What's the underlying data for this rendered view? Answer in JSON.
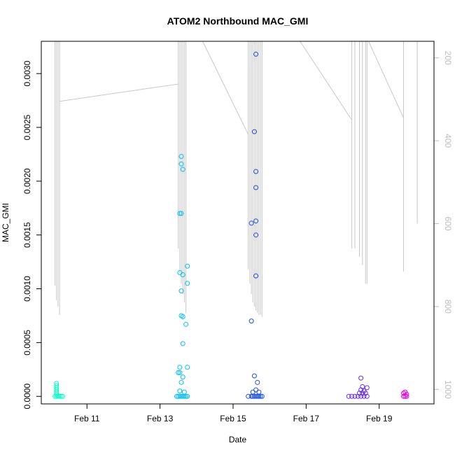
{
  "chart_data": {
    "type": "scatter",
    "title": "ATOM2 Northbound MAC_GMI",
    "xlabel": "Date",
    "ylabel": "MAC_GMI",
    "xlim": [
      "2024-02-09T18:00",
      "2024-02-20T12:00"
    ],
    "ylim": [
      -7e-05,
      0.0033
    ],
    "x_ticks": [
      {
        "value": "2024-02-11T00:00",
        "label": "Feb 11"
      },
      {
        "value": "2024-02-13T00:00",
        "label": "Feb 13"
      },
      {
        "value": "2024-02-15T00:00",
        "label": "Feb 15"
      },
      {
        "value": "2024-02-17T00:00",
        "label": "Feb 17"
      },
      {
        "value": "2024-02-19T00:00",
        "label": "Feb 19"
      }
    ],
    "y_ticks": [
      0.0,
      0.0005,
      0.001,
      0.0015,
      0.002,
      0.0025,
      0.003
    ],
    "y_tick_labels": [
      "0.0000",
      "0.0005",
      "0.0010",
      "0.0015",
      "0.0020",
      "0.0025",
      "0.0030"
    ],
    "secondary_axis": {
      "position": "right",
      "reversed": true,
      "ylim": [
        1035,
        160
      ],
      "ticks": [
        200,
        400,
        600,
        800,
        1000
      ],
      "color": "#bdbdbd"
    },
    "grid": false,
    "series": [
      {
        "color": "#00ffc8",
        "points": [
          [
            "2024-02-10T04:00",
            0.00012
          ],
          [
            "2024-02-10T04:00",
            0.0001
          ],
          [
            "2024-02-10T04:00",
            8e-05
          ],
          [
            "2024-02-10T04:00",
            6e-05
          ],
          [
            "2024-02-10T04:00",
            4e-05
          ],
          [
            "2024-02-10T04:00",
            2e-05
          ],
          [
            "2024-02-10T03:00",
            0.0
          ],
          [
            "2024-02-10T04:00",
            0.0
          ],
          [
            "2024-02-10T05:00",
            0.0
          ],
          [
            "2024-02-10T06:00",
            0.0
          ],
          [
            "2024-02-10T07:00",
            0.0
          ],
          [
            "2024-02-10T08:00",
            0.0
          ]
        ]
      },
      {
        "color": "#00bfff",
        "points": [
          [
            "2024-02-13T14:00",
            0.00223
          ],
          [
            "2024-02-13T14:00",
            0.00216
          ],
          [
            "2024-02-13T15:00",
            0.00211
          ],
          [
            "2024-02-13T13:00",
            0.0017
          ],
          [
            "2024-02-13T14:00",
            0.0017
          ],
          [
            "2024-02-13T18:00",
            0.00121
          ],
          [
            "2024-02-13T13:00",
            0.00115
          ],
          [
            "2024-02-13T15:00",
            0.00113
          ],
          [
            "2024-02-13T18:00",
            0.00105
          ],
          [
            "2024-02-13T14:00",
            0.00098
          ],
          [
            "2024-02-13T14:00",
            0.00075
          ],
          [
            "2024-02-13T15:00",
            0.00074
          ],
          [
            "2024-02-13T17:00",
            0.00067
          ],
          [
            "2024-02-13T15:00",
            0.00049
          ],
          [
            "2024-02-13T13:00",
            0.00027
          ],
          [
            "2024-02-13T18:00",
            0.00027
          ],
          [
            "2024-02-13T12:00",
            0.00022
          ],
          [
            "2024-02-13T13:00",
            0.00022
          ],
          [
            "2024-02-13T15:00",
            0.00018
          ],
          [
            "2024-02-13T14:00",
            0.00013
          ],
          [
            "2024-02-13T13:00",
            5e-05
          ],
          [
            "2024-02-13T16:00",
            4e-05
          ],
          [
            "2024-02-13T11:00",
            0.0
          ],
          [
            "2024-02-13T12:00",
            0.0
          ],
          [
            "2024-02-13T13:00",
            0.0
          ],
          [
            "2024-02-13T14:00",
            0.0
          ],
          [
            "2024-02-13T15:00",
            0.0
          ],
          [
            "2024-02-13T16:00",
            0.0
          ],
          [
            "2024-02-13T17:00",
            0.0
          ],
          [
            "2024-02-13T18:00",
            0.0
          ]
        ]
      },
      {
        "color": "#1e4fe6",
        "points": [
          [
            "2024-02-15T15:00",
            0.00318
          ],
          [
            "2024-02-15T14:00",
            0.00246
          ],
          [
            "2024-02-15T15:00",
            0.00209
          ],
          [
            "2024-02-15T15:00",
            0.00194
          ],
          [
            "2024-02-15T15:00",
            0.00163
          ],
          [
            "2024-02-15T12:00",
            0.00161
          ],
          [
            "2024-02-15T15:00",
            0.0015
          ],
          [
            "2024-02-15T15:00",
            0.00112
          ],
          [
            "2024-02-15T12:00",
            0.0007
          ],
          [
            "2024-02-15T14:00",
            0.00019
          ],
          [
            "2024-02-15T16:00",
            0.00013
          ],
          [
            "2024-02-15T15:00",
            6e-05
          ],
          [
            "2024-02-15T13:00",
            4e-05
          ],
          [
            "2024-02-15T17:00",
            4e-05
          ],
          [
            "2024-02-15T10:00",
            0.0
          ],
          [
            "2024-02-15T12:00",
            0.0
          ],
          [
            "2024-02-15T13:00",
            0.0
          ],
          [
            "2024-02-15T14:00",
            0.0
          ],
          [
            "2024-02-15T15:00",
            0.0
          ],
          [
            "2024-02-15T16:00",
            0.0
          ],
          [
            "2024-02-15T17:00",
            0.0
          ],
          [
            "2024-02-15T18:00",
            0.0
          ],
          [
            "2024-02-15T19:00",
            0.0
          ]
        ]
      },
      {
        "color": "#6a2fe0",
        "points": [
          [
            "2024-02-18T12:00",
            0.00017
          ],
          [
            "2024-02-18T13:00",
            9e-05
          ],
          [
            "2024-02-18T16:00",
            8e-05
          ],
          [
            "2024-02-18T12:00",
            6e-05
          ],
          [
            "2024-02-18T14:00",
            5e-05
          ],
          [
            "2024-02-18T11:00",
            3e-05
          ],
          [
            "2024-02-18T13:00",
            3e-05
          ],
          [
            "2024-02-18T15:00",
            3e-05
          ],
          [
            "2024-02-18T04:00",
            0.0
          ],
          [
            "2024-02-18T06:00",
            0.0
          ],
          [
            "2024-02-18T08:00",
            0.0
          ],
          [
            "2024-02-18T10:00",
            0.0
          ],
          [
            "2024-02-18T12:00",
            0.0
          ],
          [
            "2024-02-18T14:00",
            0.0
          ],
          [
            "2024-02-18T16:00",
            0.0
          ]
        ]
      },
      {
        "color": "#e000e0",
        "points": [
          [
            "2024-02-19T17:00",
            4e-05
          ],
          [
            "2024-02-19T16:00",
            3e-05
          ],
          [
            "2024-02-19T18:00",
            2e-05
          ],
          [
            "2024-02-19T16:00",
            0.0
          ],
          [
            "2024-02-19T17:00",
            0.0
          ],
          [
            "2024-02-19T18:00",
            0.0
          ]
        ]
      }
    ],
    "secondary_line": {
      "color": "#c8c8c8",
      "points": [
        [
          "2024-02-10T03:00",
          160
        ],
        [
          "2024-02-10T03:00",
          750
        ],
        [
          "2024-02-10T03:00",
          160
        ],
        [
          "2024-02-10T04:00",
          160
        ],
        [
          "2024-02-10T04:00",
          785
        ],
        [
          "2024-02-10T04:00",
          160
        ],
        [
          "2024-02-10T05:00",
          160
        ],
        [
          "2024-02-10T05:00",
          800
        ],
        [
          "2024-02-10T05:00",
          160
        ],
        [
          "2024-02-10T06:00",
          160
        ],
        [
          "2024-02-10T06:00",
          820
        ],
        [
          "2024-02-10T06:00",
          305
        ],
        [
          "2024-02-13T12:00",
          263
        ],
        [
          "2024-02-13T12:00",
          660
        ],
        [
          "2024-02-13T12:00",
          160
        ],
        [
          "2024-02-13T13:00",
          160
        ],
        [
          "2024-02-13T13:00",
          720
        ],
        [
          "2024-02-13T13:00",
          160
        ],
        [
          "2024-02-13T14:00",
          160
        ],
        [
          "2024-02-13T14:00",
          745
        ],
        [
          "2024-02-13T14:00",
          160
        ],
        [
          "2024-02-13T15:00",
          160
        ],
        [
          "2024-02-13T15:00",
          770
        ],
        [
          "2024-02-13T15:00",
          160
        ],
        [
          "2024-02-13T16:00",
          160
        ],
        [
          "2024-02-13T16:00",
          790
        ],
        [
          "2024-02-13T16:00",
          160
        ],
        [
          "2024-02-13T17:00",
          160
        ],
        [
          "2024-02-13T17:00",
          815
        ],
        [
          "2024-02-13T17:00",
          160
        ],
        [
          "2024-02-14T04:00",
          160
        ],
        [
          "2024-02-15T10:00",
          385
        ],
        [
          "2024-02-15T10:00",
          710
        ],
        [
          "2024-02-15T10:00",
          160
        ],
        [
          "2024-02-15T11:00",
          160
        ],
        [
          "2024-02-15T11:00",
          745
        ],
        [
          "2024-02-15T11:00",
          160
        ],
        [
          "2024-02-15T12:00",
          160
        ],
        [
          "2024-02-15T12:00",
          770
        ],
        [
          "2024-02-15T12:00",
          160
        ],
        [
          "2024-02-15T13:00",
          160
        ],
        [
          "2024-02-15T13:00",
          790
        ],
        [
          "2024-02-15T13:00",
          160
        ],
        [
          "2024-02-15T14:00",
          160
        ],
        [
          "2024-02-15T14:00",
          800
        ],
        [
          "2024-02-15T14:00",
          160
        ],
        [
          "2024-02-15T15:00",
          160
        ],
        [
          "2024-02-15T15:00",
          810
        ],
        [
          "2024-02-15T15:00",
          160
        ],
        [
          "2024-02-15T16:00",
          160
        ],
        [
          "2024-02-15T16:00",
          815
        ],
        [
          "2024-02-15T16:00",
          160
        ],
        [
          "2024-02-15T17:00",
          160
        ],
        [
          "2024-02-15T17:00",
          820
        ],
        [
          "2024-02-15T17:00",
          160
        ],
        [
          "2024-02-15T18:00",
          160
        ],
        [
          "2024-02-15T18:00",
          820
        ],
        [
          "2024-02-15T18:00",
          160
        ],
        [
          "2024-02-15T19:00",
          160
        ],
        [
          "2024-02-15T19:00",
          825
        ],
        [
          "2024-02-15T19:00",
          160
        ],
        [
          "2024-02-16T20:00",
          160
        ],
        [
          "2024-02-18T06:00",
          350
        ],
        [
          "2024-02-18T06:00",
          660
        ],
        [
          "2024-02-18T06:00",
          160
        ],
        [
          "2024-02-18T08:00",
          160
        ],
        [
          "2024-02-18T08:00",
          660
        ],
        [
          "2024-02-18T08:00",
          160
        ],
        [
          "2024-02-18T11:00",
          160
        ],
        [
          "2024-02-18T11:00",
          680
        ],
        [
          "2024-02-18T11:00",
          160
        ],
        [
          "2024-02-18T13:00",
          160
        ],
        [
          "2024-02-18T13:00",
          700
        ],
        [
          "2024-02-18T13:00",
          160
        ],
        [
          "2024-02-18T15:00",
          160
        ],
        [
          "2024-02-18T15:00",
          745
        ],
        [
          "2024-02-18T15:00",
          160
        ],
        [
          "2024-02-18T16:00",
          160
        ],
        [
          "2024-02-18T16:00",
          745
        ],
        [
          "2024-02-18T16:00",
          160
        ],
        [
          "2024-02-18T17:00",
          160
        ],
        [
          "2024-02-19T16:00",
          345
        ],
        [
          "2024-02-19T16:00",
          715
        ],
        [
          "2024-02-19T16:00",
          160
        ],
        [
          "2024-02-20T01:00",
          160
        ],
        [
          "2024-02-20T01:00",
          600
        ]
      ]
    }
  }
}
